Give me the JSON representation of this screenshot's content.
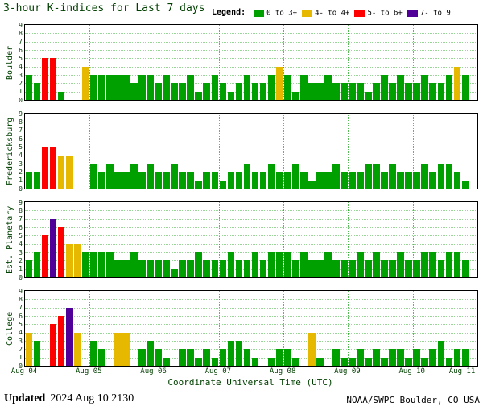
{
  "title": "3-hour K-indices for Last 7 days",
  "legend": {
    "label": "Legend:",
    "items": [
      {
        "label": "0 to 3+",
        "key": "green"
      },
      {
        "label": "4- to 4+",
        "key": "yellow"
      },
      {
        "label": "5- to 6+",
        "key": "red"
      },
      {
        "label": "7- to 9",
        "key": "purple"
      }
    ]
  },
  "palette": {
    "green": "#00a000",
    "yellow": "#e6b800",
    "red": "#ff0000",
    "purple": "#500099"
  },
  "y_axis": {
    "min": 0,
    "max": 9,
    "ticks": [
      0,
      1,
      2,
      3,
      4,
      5,
      6,
      7,
      8,
      9
    ]
  },
  "x_axis": {
    "title": "Coordinate Universal Time (UTC)",
    "tick_labels": [
      "Aug 04",
      "Aug 05",
      "Aug 06",
      "Aug 07",
      "Aug 08",
      "Aug 09",
      "Aug 10",
      "Aug 11"
    ]
  },
  "footer": {
    "updated_label": "Updated",
    "updated_text": "2024 Aug 10 2130",
    "credit": "NOAA/SWPC Boulder, CO USA"
  },
  "chart_data": {
    "type": "bar",
    "days": 7,
    "bars_per_day": 8,
    "value_color_rule": {
      "0-3": "green",
      "4": "yellow",
      "5-6": "red",
      "7-9": "purple"
    },
    "panels": [
      {
        "station": "Boulder",
        "values": [
          3,
          2,
          5,
          5,
          1,
          0,
          0,
          4,
          3,
          3,
          3,
          3,
          3,
          2,
          3,
          3,
          2,
          3,
          2,
          2,
          3,
          1,
          2,
          3,
          2,
          1,
          2,
          3,
          2,
          2,
          3,
          4,
          3,
          1,
          3,
          2,
          2,
          3,
          2,
          2,
          2,
          2,
          1,
          2,
          3,
          2,
          3,
          2,
          2,
          3,
          2,
          2,
          3,
          4,
          3
        ]
      },
      {
        "station": "Fredericksburg",
        "values": [
          2,
          2,
          5,
          5,
          4,
          4,
          0,
          0,
          3,
          2,
          3,
          2,
          2,
          3,
          2,
          3,
          2,
          2,
          3,
          2,
          2,
          1,
          2,
          2,
          1,
          2,
          2,
          3,
          2,
          2,
          3,
          2,
          2,
          3,
          2,
          1,
          2,
          2,
          3,
          2,
          2,
          2,
          3,
          3,
          2,
          3,
          2,
          2,
          2,
          3,
          2,
          3,
          3,
          2,
          1
        ]
      },
      {
        "station": "Est. Planetary",
        "values": [
          2,
          3,
          5,
          7,
          6,
          4,
          4,
          3,
          3,
          3,
          3,
          2,
          2,
          3,
          2,
          2,
          2,
          2,
          1,
          2,
          2,
          3,
          2,
          2,
          2,
          3,
          2,
          2,
          3,
          2,
          3,
          3,
          3,
          2,
          3,
          2,
          2,
          3,
          2,
          2,
          2,
          3,
          2,
          3,
          2,
          2,
          3,
          2,
          2,
          3,
          3,
          2,
          3,
          3,
          2
        ]
      },
      {
        "station": "College",
        "values": [
          4,
          3,
          0,
          5,
          6,
          7,
          4,
          0,
          3,
          2,
          0,
          4,
          4,
          0,
          2,
          3,
          2,
          1,
          0,
          2,
          2,
          1,
          2,
          1,
          2,
          3,
          3,
          2,
          1,
          0,
          1,
          2,
          2,
          1,
          0,
          4,
          1,
          0,
          2,
          1,
          1,
          2,
          1,
          2,
          1,
          2,
          2,
          1,
          2,
          1,
          2,
          3,
          1,
          2,
          2
        ]
      }
    ]
  }
}
